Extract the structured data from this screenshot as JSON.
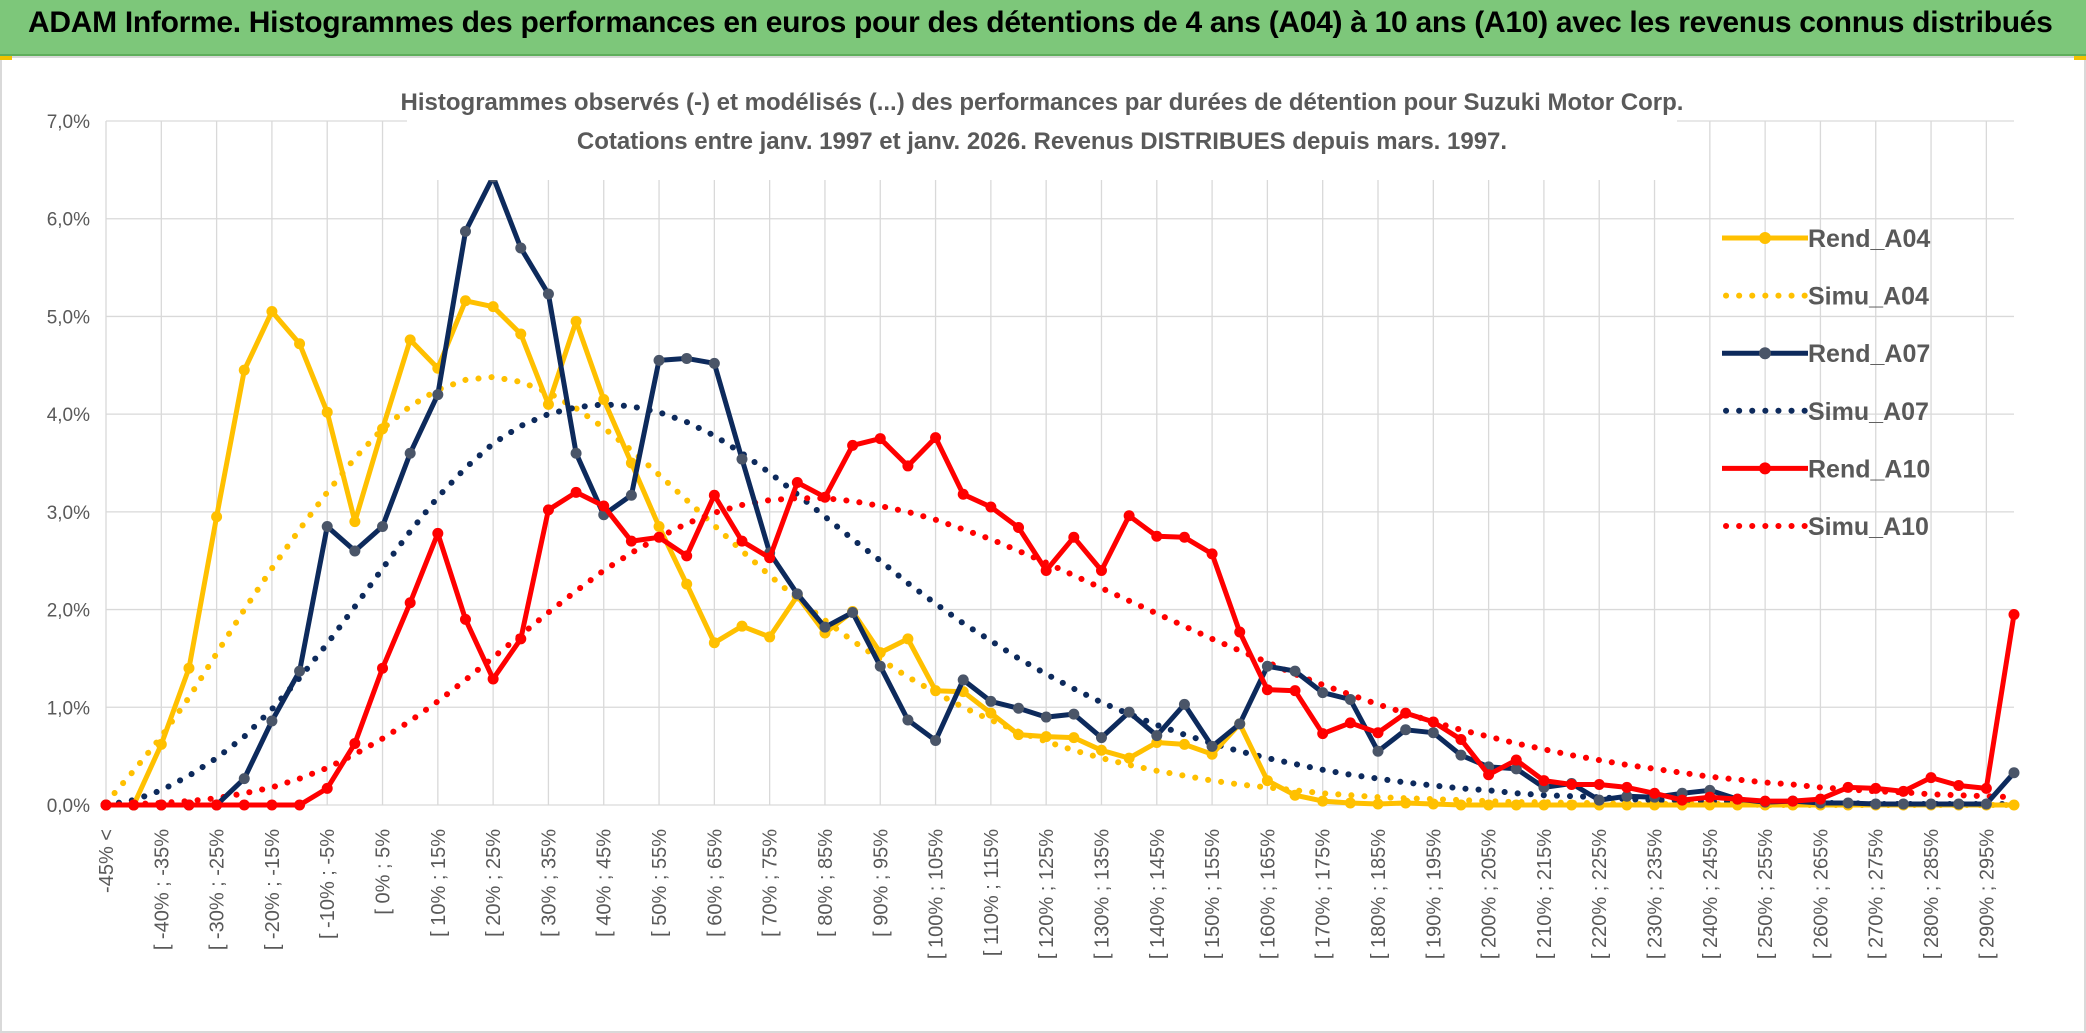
{
  "banner": {
    "title": "ADAM Informe. Histogrammes des performances en euros pour des détentions de 4 ans (A04) à 10 ans (A10) avec les revenus connus distribués"
  },
  "colors": {
    "banner_bg": "#7dc77a",
    "a04": "#ffc000",
    "a07": "#0d2a5c",
    "a07_marker": "#4a5568",
    "a10": "#ff0000",
    "grid": "#d9d9d9",
    "text": "#595959"
  },
  "chart_data": {
    "type": "line",
    "title": "Histogrammes observés (-) et modélisés (...) des performances par durées de détention pour Suzuki Motor Corp.",
    "subtitle": "Cotations entre janv. 1997 et janv. 2026. Revenus DISTRIBUES depuis mars. 1997.",
    "ylim": [
      0,
      7
    ],
    "y_ticks": [
      "0,0%",
      "1,0%",
      "2,0%",
      "3,0%",
      "4,0%",
      "5,0%",
      "6,0%",
      "7,0%"
    ],
    "x_tick_labels": [
      "-45% <",
      "[ -40% ; -35%",
      "[ -30% ; -25%",
      "[ -20% ; -15%",
      "[ -10% ; -5%",
      "[ 0% ; 5%",
      "[ 10% ; 15%",
      "[ 20% ; 25%",
      "[ 30% ; 35%",
      "[ 40% ; 45%",
      "[ 50% ; 55%",
      "[ 60% ; 65%",
      "[ 70% ; 75%",
      "[ 80% ; 85%",
      "[ 90% ; 95%",
      "[ 100% ; 105%",
      "[ 110% ; 115%",
      "[ 120% ; 125%",
      "[ 130% ; 135%",
      "[ 140% ; 145%",
      "[ 150% ; 155%",
      "[ 160% ; 165%",
      "[ 170% ; 175%",
      "[ 180% ; 185%",
      "[ 190% ; 195%",
      "[ 200% ; 205%",
      "[ 210% ; 215%",
      "[ 220% ; 225%",
      "[ 230% ; 235%",
      "[ 240% ; 245%",
      "[ 250% ; 255%",
      "[ 260% ; 265%",
      "[ 270% ; 275%",
      "[ 280% ; 285%",
      "[ 290% ; 295%"
    ],
    "n_categories": 70,
    "grid": true,
    "legend_position": "right",
    "series": [
      {
        "name": "Rend_A04",
        "style": "solid",
        "color": "#ffc000",
        "values": [
          0,
          0,
          0.62,
          1.4,
          2.95,
          4.45,
          5.05,
          4.72,
          4.02,
          2.9,
          3.85,
          4.76,
          4.47,
          5.16,
          5.1,
          4.82,
          4.1,
          4.95,
          4.15,
          3.5,
          2.85,
          2.26,
          1.66,
          1.83,
          1.72,
          2.14,
          1.76,
          1.98,
          1.56,
          1.7,
          1.17,
          1.16,
          0.94,
          0.72,
          0.7,
          0.69,
          0.56,
          0.48,
          0.64,
          0.62,
          0.52,
          0.83,
          0.25,
          0.1,
          0.04,
          0.02,
          0.01,
          0.02,
          0.01,
          0,
          0,
          0,
          0,
          0,
          0,
          0,
          0,
          0,
          0,
          0,
          0,
          0,
          0,
          0,
          0,
          0,
          0,
          0,
          0,
          0
        ]
      },
      {
        "name": "Simu_A04",
        "style": "dotted",
        "color": "#ffc000",
        "values": [
          0.02,
          0.35,
          0.7,
          1.1,
          1.55,
          2.0,
          2.42,
          2.82,
          3.2,
          3.55,
          3.85,
          4.08,
          4.25,
          4.35,
          4.38,
          4.33,
          4.22,
          4.06,
          3.86,
          3.63,
          3.38,
          3.12,
          2.86,
          2.6,
          2.35,
          2.11,
          1.89,
          1.68,
          1.49,
          1.31,
          1.15,
          1.0,
          0.87,
          0.75,
          0.65,
          0.56,
          0.48,
          0.41,
          0.35,
          0.3,
          0.25,
          0.21,
          0.18,
          0.15,
          0.12,
          0.1,
          0.08,
          0.07,
          0.06,
          0.05,
          0.04,
          0.03,
          0.03,
          0.02,
          0.02,
          0.01,
          0.01,
          0.01,
          0.01,
          0.01,
          0,
          0,
          0,
          0,
          0,
          0,
          0,
          0,
          0,
          0
        ]
      },
      {
        "name": "Rend_A07",
        "style": "solid",
        "color": "#0d2a5c",
        "values": [
          0,
          0,
          0,
          0,
          0,
          0.27,
          0.86,
          1.37,
          2.85,
          2.6,
          2.85,
          3.6,
          4.2,
          5.87,
          6.43,
          5.7,
          5.23,
          3.6,
          2.97,
          3.17,
          4.55,
          4.57,
          4.52,
          3.54,
          2.58,
          2.16,
          1.82,
          1.97,
          1.42,
          0.87,
          0.66,
          1.28,
          1.06,
          0.99,
          0.9,
          0.93,
          0.69,
          0.95,
          0.71,
          1.03,
          0.6,
          0.83,
          1.42,
          1.37,
          1.15,
          1.08,
          0.55,
          0.77,
          0.74,
          0.51,
          0.39,
          0.37,
          0.18,
          0.22,
          0.05,
          0.09,
          0.08,
          0.12,
          0.15,
          0.06,
          0.03,
          0.04,
          0.02,
          0.02,
          0.01,
          0.01,
          0.01,
          0.01,
          0.01,
          0.33
        ]
      },
      {
        "name": "Simu_A07",
        "style": "dotted",
        "color": "#0d2a5c",
        "values": [
          0,
          0.05,
          0.15,
          0.3,
          0.48,
          0.7,
          0.98,
          1.3,
          1.65,
          2.03,
          2.42,
          2.8,
          3.15,
          3.45,
          3.7,
          3.88,
          4.0,
          4.07,
          4.1,
          4.08,
          4.02,
          3.92,
          3.78,
          3.6,
          3.4,
          3.18,
          2.95,
          2.72,
          2.5,
          2.27,
          2.06,
          1.86,
          1.68,
          1.5,
          1.34,
          1.19,
          1.05,
          0.93,
          0.82,
          0.72,
          0.63,
          0.55,
          0.48,
          0.42,
          0.36,
          0.31,
          0.27,
          0.23,
          0.2,
          0.17,
          0.15,
          0.12,
          0.1,
          0.09,
          0.08,
          0.06,
          0.05,
          0.05,
          0.04,
          0.03,
          0.03,
          0.02,
          0.02,
          0.02,
          0.01,
          0.01,
          0.01,
          0.01,
          0.01,
          0.01
        ]
      },
      {
        "name": "Rend_A10",
        "style": "solid",
        "color": "#ff0000",
        "values": [
          0,
          0,
          0,
          0,
          0,
          0,
          0,
          0,
          0.17,
          0.63,
          1.4,
          2.07,
          2.78,
          1.9,
          1.29,
          1.7,
          3.02,
          3.2,
          3.06,
          2.7,
          2.74,
          2.55,
          3.17,
          2.7,
          2.53,
          3.3,
          3.15,
          3.68,
          3.75,
          3.47,
          3.76,
          3.18,
          3.05,
          2.84,
          2.4,
          2.74,
          2.4,
          2.96,
          2.75,
          2.74,
          2.57,
          1.77,
          1.18,
          1.17,
          0.73,
          0.84,
          0.74,
          0.94,
          0.85,
          0.67,
          0.31,
          0.46,
          0.25,
          0.21,
          0.21,
          0.18,
          0.12,
          0.05,
          0.08,
          0.06,
          0.04,
          0.04,
          0.06,
          0.18,
          0.17,
          0.14,
          0.28,
          0.2,
          0.17,
          1.95
        ]
      },
      {
        "name": "Simu_A10",
        "style": "dotted",
        "color": "#ff0000",
        "values": [
          0,
          0.01,
          0.02,
          0.04,
          0.07,
          0.12,
          0.18,
          0.27,
          0.38,
          0.52,
          0.68,
          0.86,
          1.06,
          1.28,
          1.51,
          1.74,
          1.97,
          2.19,
          2.4,
          2.58,
          2.74,
          2.88,
          2.99,
          3.07,
          3.12,
          3.14,
          3.14,
          3.11,
          3.06,
          3.0,
          2.92,
          2.82,
          2.72,
          2.6,
          2.48,
          2.35,
          2.22,
          2.09,
          1.96,
          1.83,
          1.7,
          1.58,
          1.46,
          1.34,
          1.23,
          1.13,
          1.03,
          0.94,
          0.85,
          0.77,
          0.7,
          0.63,
          0.57,
          0.51,
          0.46,
          0.41,
          0.37,
          0.33,
          0.29,
          0.26,
          0.23,
          0.21,
          0.18,
          0.16,
          0.14,
          0.13,
          0.11,
          0.1,
          0.09,
          0.08
        ]
      }
    ]
  }
}
